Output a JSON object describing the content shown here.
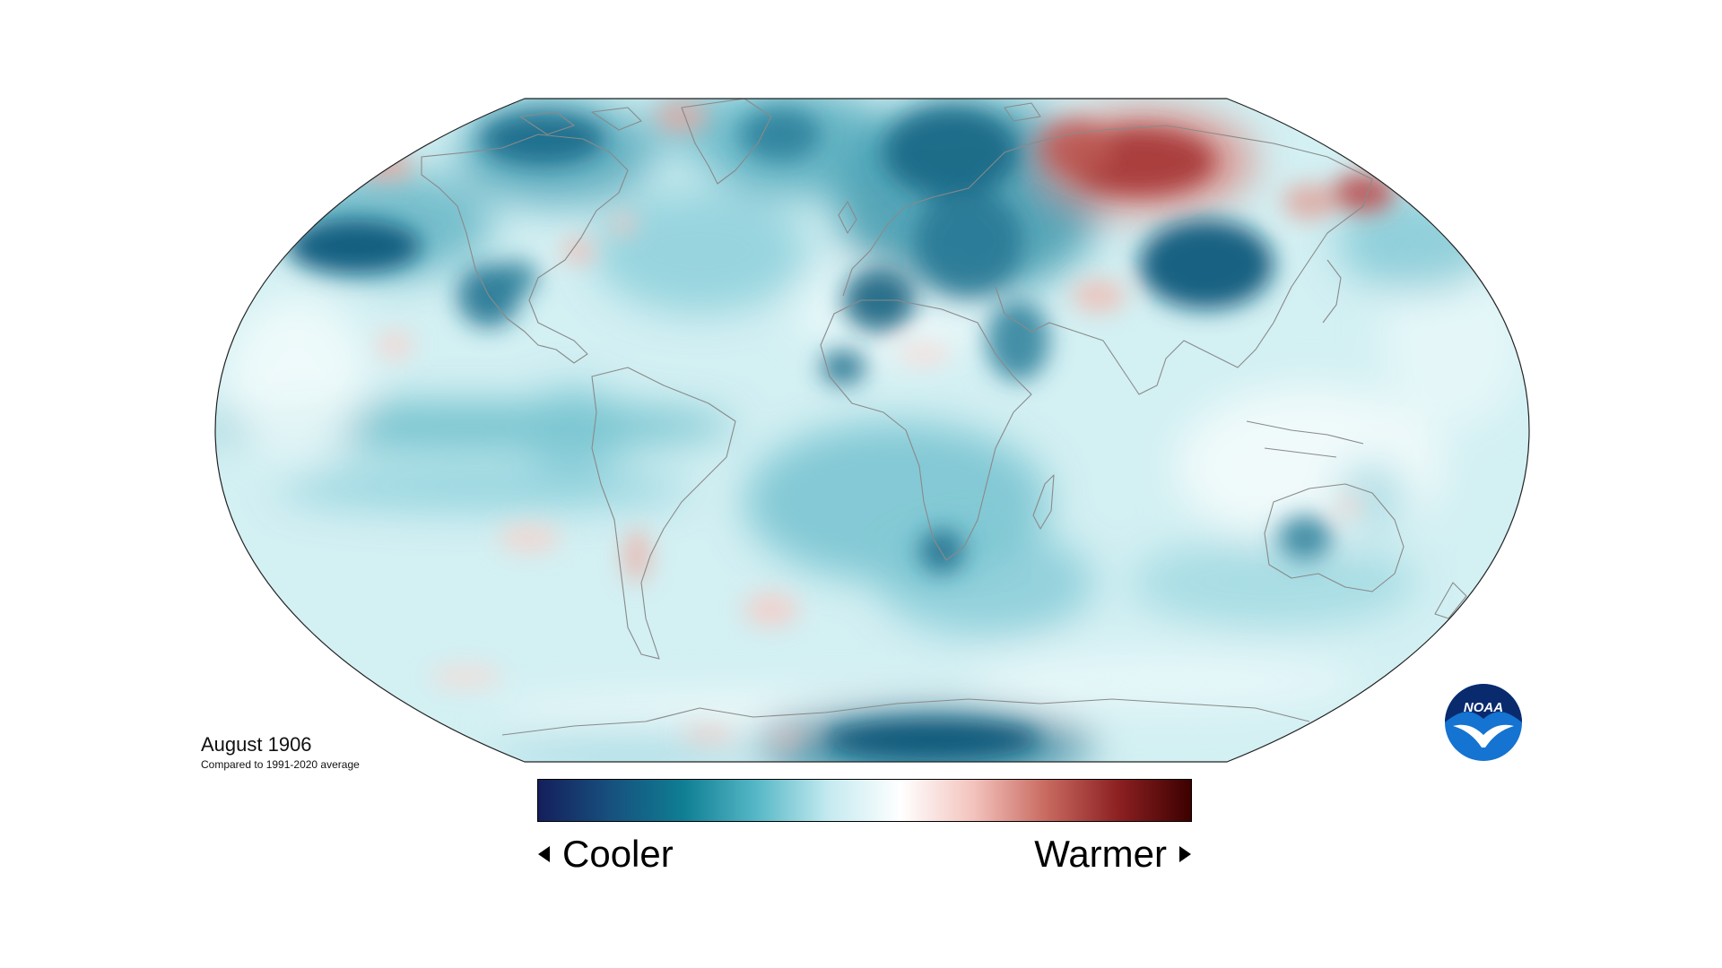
{
  "caption": {
    "title": "August 1906",
    "subtitle": "Compared to 1991-2020 average"
  },
  "legend": {
    "cooler_label": "Cooler",
    "warmer_label": "Warmer",
    "gradient_colors": [
      "#141f5c",
      "#17507e",
      "#0f7e93",
      "#55b7c6",
      "#c4eaf0",
      "#ffffff",
      "#f3c3bd",
      "#c86a60",
      "#8c2022",
      "#3d0000"
    ]
  },
  "logo": {
    "text": "NOAA",
    "colors": {
      "primary": "#1573d1",
      "dark": "#0a2a6e",
      "white": "#ffffff"
    }
  },
  "map": {
    "projection": "robinson",
    "ocean_base_color": "#d3f0f3",
    "outline_color": "#222222",
    "coastline_color": "#8a8a8a",
    "anomaly_scale": {
      "strong_cool": "#0d5a7c",
      "cool": "#2f94a8",
      "mild_cool": "#8fd1dc",
      "neutral": "#f4fbfc",
      "mild_warm": "#f5d3cf",
      "warm": "#d27068",
      "strong_warm": "#a22d2c"
    }
  }
}
